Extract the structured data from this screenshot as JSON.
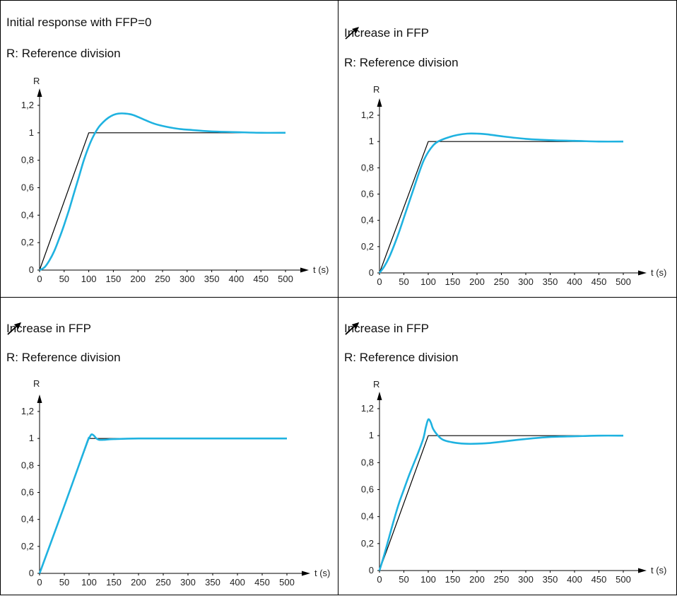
{
  "panels": [
    {
      "title": "Initial response with FFP=0",
      "arrow_count": 0,
      "subtitle": "R: Reference division",
      "ylabel": "R",
      "xlabel": "t (s)"
    },
    {
      "title": "Increase in FFP",
      "arrow_count": 1,
      "subtitle": "R: Reference division",
      "ylabel": "R",
      "xlabel": "t (s)"
    },
    {
      "title": "Increase in FFP",
      "arrow_count": 2,
      "subtitle": "R: Reference division",
      "ylabel": "R",
      "xlabel": "t (s)"
    },
    {
      "title": "Increase in FFP",
      "arrow_count": 3,
      "subtitle": "R: Reference division",
      "ylabel": "R",
      "xlabel": "t (s)"
    }
  ],
  "chart_data": [
    {
      "type": "line",
      "title": "Initial response with FFP=0",
      "subtitle": "R: Reference division",
      "xlabel": "t (s)",
      "ylabel": "R",
      "xlim": [
        0,
        500
      ],
      "ylim": [
        0,
        1.2
      ],
      "x_ticks": [
        "0",
        "50",
        "100",
        "150",
        "200",
        "250",
        "300",
        "350",
        "400",
        "450",
        "500"
      ],
      "y_ticks": [
        "0",
        "0,2",
        "0,4",
        "0,6",
        "0,8",
        "1",
        "1,2"
      ],
      "grid": false,
      "series": [
        {
          "color": "#000000",
          "x": [
            0,
            100,
            500
          ],
          "y": [
            0,
            1,
            1
          ]
        },
        {
          "color": "#1fb2e0",
          "x": [
            0,
            10,
            20,
            30,
            40,
            50,
            60,
            70,
            80,
            90,
            100,
            110,
            120,
            130,
            140,
            150,
            160,
            175,
            190,
            210,
            230,
            250,
            280,
            310,
            350,
            400,
            450,
            500
          ],
          "y": [
            0,
            0.02,
            0.07,
            0.14,
            0.23,
            0.33,
            0.44,
            0.56,
            0.68,
            0.8,
            0.9,
            0.98,
            1.04,
            1.08,
            1.11,
            1.13,
            1.14,
            1.14,
            1.13,
            1.1,
            1.07,
            1.05,
            1.03,
            1.02,
            1.01,
            1.005,
            1.0,
            1.0
          ]
        }
      ]
    },
    {
      "type": "line",
      "title": "Increase in FFP",
      "subtitle": "R: Reference division",
      "xlabel": "t (s)",
      "ylabel": "R",
      "xlim": [
        0,
        500
      ],
      "ylim": [
        0,
        1.2
      ],
      "x_ticks": [
        "0",
        "50",
        "100",
        "150",
        "200",
        "250",
        "300",
        "350",
        "400",
        "450",
        "500"
      ],
      "y_ticks": [
        "0",
        "0,2",
        "0,4",
        "0,6",
        "0,8",
        "1",
        "1,2"
      ],
      "grid": false,
      "series": [
        {
          "color": "#000000",
          "x": [
            0,
            100,
            500
          ],
          "y": [
            0,
            1,
            1
          ]
        },
        {
          "color": "#1fb2e0",
          "x": [
            0,
            10,
            20,
            30,
            40,
            50,
            60,
            70,
            80,
            90,
            100,
            110,
            120,
            140,
            160,
            180,
            200,
            220,
            250,
            300,
            350,
            400,
            450,
            500
          ],
          "y": [
            0,
            0.05,
            0.12,
            0.21,
            0.31,
            0.42,
            0.53,
            0.64,
            0.75,
            0.85,
            0.92,
            0.97,
            1.0,
            1.03,
            1.05,
            1.06,
            1.06,
            1.055,
            1.04,
            1.02,
            1.01,
            1.005,
            1.0,
            1.0
          ]
        }
      ]
    },
    {
      "type": "line",
      "title": "Increase in FFP",
      "subtitle": "R: Reference division",
      "xlabel": "t (s)",
      "ylabel": "R",
      "xlim": [
        0,
        500
      ],
      "ylim": [
        0,
        1.2
      ],
      "x_ticks": [
        "0",
        "50",
        "100",
        "150",
        "200",
        "250",
        "300",
        "350",
        "400",
        "450",
        "500"
      ],
      "y_ticks": [
        "0",
        "0,2",
        "0,4",
        "0,6",
        "0,8",
        "1",
        "1,2"
      ],
      "grid": false,
      "series": [
        {
          "color": "#000000",
          "x": [
            0,
            100,
            500
          ],
          "y": [
            0,
            1,
            1
          ]
        },
        {
          "color": "#1fb2e0",
          "x": [
            0,
            50,
            95,
            100,
            105,
            110,
            115,
            120,
            130,
            150,
            200,
            300,
            400,
            500
          ],
          "y": [
            0,
            0.5,
            0.96,
            1.0,
            1.03,
            1.02,
            1.0,
            0.99,
            0.99,
            0.995,
            1.0,
            1.0,
            1.0,
            1.0
          ]
        }
      ]
    },
    {
      "type": "line",
      "title": "Increase in FFP",
      "subtitle": "R: Reference division",
      "xlabel": "t (s)",
      "ylabel": "R",
      "xlim": [
        0,
        500
      ],
      "ylim": [
        0,
        1.2
      ],
      "x_ticks": [
        "0",
        "50",
        "100",
        "150",
        "200",
        "250",
        "300",
        "350",
        "400",
        "450",
        "500"
      ],
      "y_ticks": [
        "0",
        "0,2",
        "0,4",
        "0,6",
        "0,8",
        "1",
        "1,2"
      ],
      "grid": false,
      "series": [
        {
          "color": "#000000",
          "x": [
            0,
            100,
            500
          ],
          "y": [
            0,
            1,
            1
          ]
        },
        {
          "color": "#1fb2e0",
          "x": [
            0,
            10,
            20,
            30,
            40,
            50,
            60,
            70,
            80,
            90,
            95,
            100,
            105,
            110,
            120,
            130,
            150,
            175,
            200,
            225,
            250,
            300,
            350,
            400,
            450,
            500
          ],
          "y": [
            0,
            0.12,
            0.25,
            0.38,
            0.5,
            0.6,
            0.7,
            0.79,
            0.88,
            0.98,
            1.06,
            1.12,
            1.1,
            1.05,
            1.0,
            0.97,
            0.95,
            0.94,
            0.94,
            0.945,
            0.955,
            0.975,
            0.99,
            0.995,
            1.0,
            1.0
          ]
        }
      ]
    }
  ]
}
